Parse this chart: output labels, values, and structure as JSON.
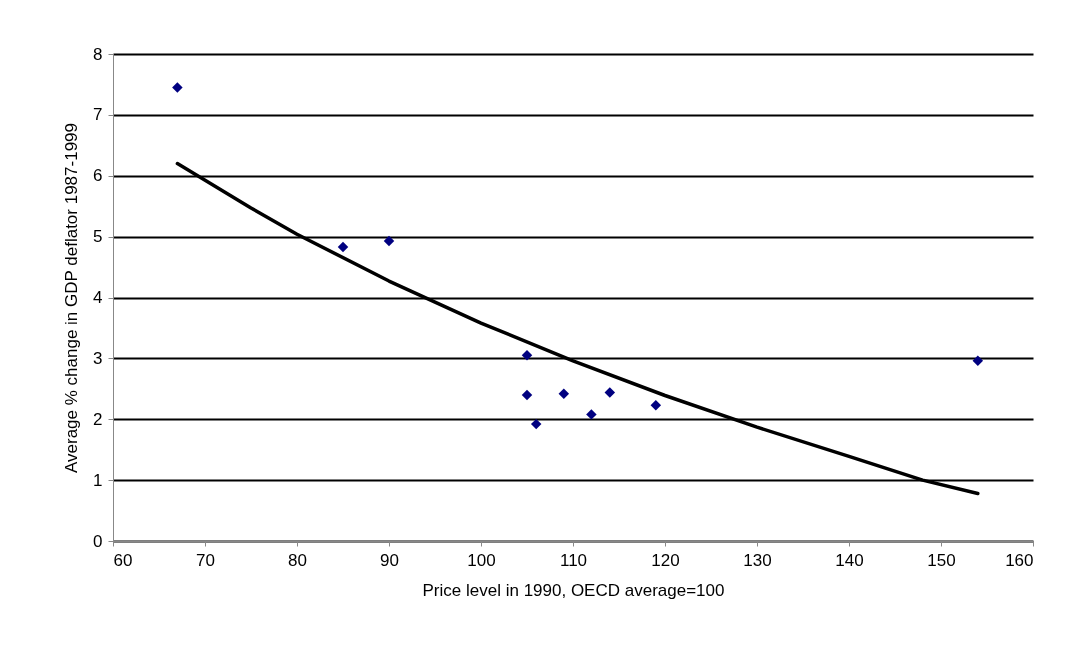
{
  "chart_data": {
    "type": "scatter",
    "xlabel": "Price level in 1990, OECD average=100",
    "ylabel": "Average % change in GDP deflator 1987-1999",
    "xlim": [
      60,
      160
    ],
    "xticks": [
      60,
      70,
      80,
      90,
      100,
      110,
      120,
      130,
      140,
      150,
      160
    ],
    "ylim": [
      0,
      8
    ],
    "yticks": [
      0,
      1,
      2,
      3,
      4,
      5,
      6,
      7,
      8
    ],
    "grid": "y",
    "marker": "diamond",
    "series": [
      {
        "color": "#000080",
        "x": [
          67,
          85,
          90,
          105,
          105,
          106,
          109,
          112,
          114,
          119,
          154
        ],
        "values": [
          7.45,
          4.83,
          4.93,
          3.05,
          2.4,
          1.92,
          2.42,
          2.08,
          2.44,
          2.23,
          2.96
        ]
      },
      {
        "type": "line",
        "marker": "none",
        "color": "#000000",
        "x": [
          67,
          75,
          80,
          90,
          100,
          110,
          120,
          130,
          140,
          148,
          154
        ],
        "values": [
          6.2,
          5.47,
          5.04,
          4.27,
          3.58,
          2.96,
          2.39,
          1.87,
          1.39,
          1.0,
          0.78
        ]
      }
    ]
  }
}
